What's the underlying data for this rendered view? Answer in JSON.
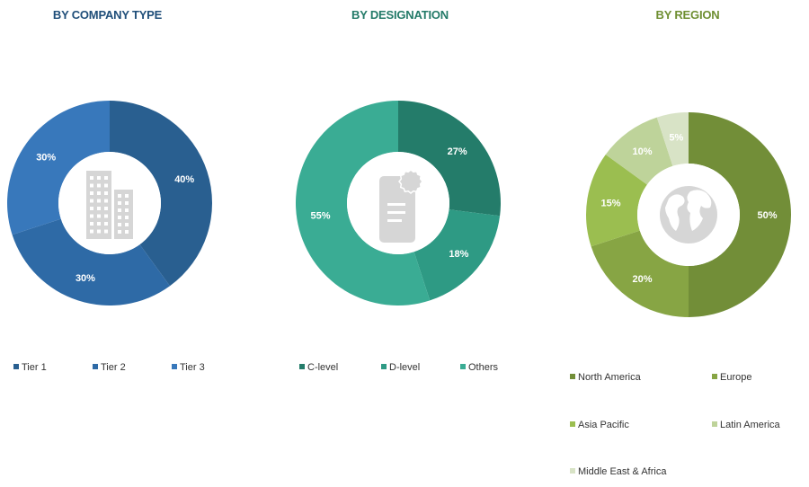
{
  "colors": {
    "title_type": "#1f4e79",
    "title_designation": "#237a68",
    "title_region": "#6f8f32",
    "icon_grey": "#d6d6d6"
  },
  "chart_data": [
    {
      "type": "pie",
      "title": "BY COMPANY TYPE",
      "categories": [
        "Tier 1",
        "Tier 2",
        "Tier 3"
      ],
      "values": [
        40,
        30,
        30
      ],
      "value_labels": [
        "40%",
        "30%",
        "30%"
      ],
      "colors": [
        "#295f90",
        "#2e6aa6",
        "#3878bb"
      ],
      "label_colors": [
        "#ffffff",
        "#ffffff",
        "#ffffff"
      ],
      "legend_position": "bottom",
      "center_icon": "building-icon"
    },
    {
      "type": "pie",
      "title": "BY DESIGNATION",
      "categories": [
        "C-level",
        "D-level",
        "Others"
      ],
      "values": [
        27,
        18,
        55
      ],
      "value_labels": [
        "27%",
        "18%",
        "55%"
      ],
      "colors": [
        "#247c6a",
        "#2e9a84",
        "#3aac94"
      ],
      "label_colors": [
        "#ffffff",
        "#ffffff",
        "#ffffff"
      ],
      "legend_position": "bottom",
      "center_icon": "certificate-document-icon"
    },
    {
      "type": "pie",
      "title": "BY REGION",
      "categories": [
        "North America",
        "Europe",
        "Asia Pacific",
        "Latin America",
        "Middle East & Africa"
      ],
      "values": [
        50,
        20,
        15,
        10,
        5
      ],
      "value_labels": [
        "50%",
        "20%",
        "15%",
        "10%",
        "5%"
      ],
      "colors": [
        "#728e38",
        "#87a544",
        "#9bbe50",
        "#bed39a",
        "#d8e3c6"
      ],
      "label_colors": [
        "#ffffff",
        "#ffffff",
        "#ffffff",
        "#ffffff",
        "#ffffff"
      ],
      "legend_position": "bottom",
      "center_icon": "globe-icon"
    }
  ]
}
